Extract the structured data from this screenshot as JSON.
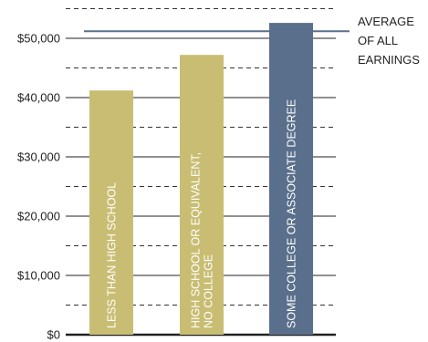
{
  "chart_data": {
    "type": "bar",
    "title": "",
    "xlabel": "",
    "ylabel": "",
    "ylim": [
      0,
      55000
    ],
    "y_ticks": [
      0,
      10000,
      20000,
      30000,
      40000,
      50000
    ],
    "y_tick_labels": [
      "$0",
      "$10,000",
      "$20,000",
      "$30,000",
      "$40,000",
      "$50,000"
    ],
    "grid": "dashed horizontal at half-ticks, solid at major ticks",
    "categories": [
      [
        "LESS THAN HIGH SCHOOL"
      ],
      [
        "HIGH SCHOOL OR EQUIVALENT,",
        "NO COLLEGE"
      ],
      [
        "SOME COLLEGE OR ASSOCIATE DEGREE"
      ]
    ],
    "values": [
      41200,
      47200,
      52600
    ],
    "bar_colors": [
      "#c9bd73",
      "#c9bd73",
      "#5a6f8b"
    ],
    "average_line": {
      "value": 51200,
      "label": [
        "AVERAGE",
        "OF ALL",
        "EARNINGS"
      ],
      "color": "#5a6f8b"
    }
  }
}
